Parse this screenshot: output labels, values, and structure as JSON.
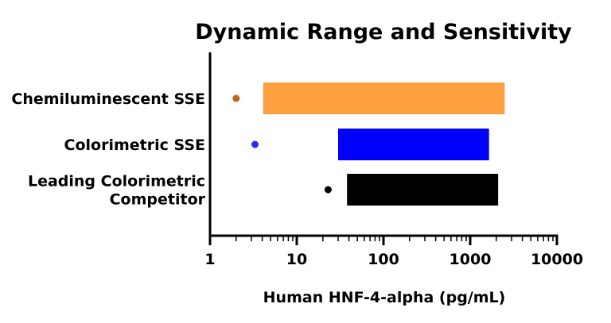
{
  "chart_data": {
    "type": "bar",
    "title": "Dynamic Range and Sensitivity",
    "xlabel": "Human HNF-4-alpha (pg/mL)",
    "ylabel": "",
    "x_scale": "log",
    "xlim": [
      1,
      10000
    ],
    "x_ticks": [
      {
        "value": 1,
        "label": "1"
      },
      {
        "value": 10,
        "label": "10"
      },
      {
        "value": 100,
        "label": "100"
      },
      {
        "value": 1000,
        "label": "1000"
      },
      {
        "value": 10000,
        "label": "10000"
      }
    ],
    "grid": false,
    "legend": "none",
    "categories": [
      {
        "lines": [
          "Chemiluminescent SSE"
        ]
      },
      {
        "lines": [
          "Colorimetric SSE"
        ]
      },
      {
        "lines": [
          "Leading Colorimetric",
          "Competitor"
        ]
      }
    ],
    "series": [
      {
        "range_start": 4.1,
        "range_end": 2500,
        "sensitivity": 2.0,
        "bar_color": "#FFA040",
        "dot_color": "#C0651A"
      },
      {
        "range_start": 30,
        "range_end": 1650,
        "sensitivity": 3.3,
        "bar_color": "#0000FF",
        "dot_color": "#2A2AF0"
      },
      {
        "range_start": 38,
        "range_end": 2100,
        "sensitivity": 23,
        "bar_color": "#000000",
        "dot_color": "#000000"
      }
    ]
  }
}
